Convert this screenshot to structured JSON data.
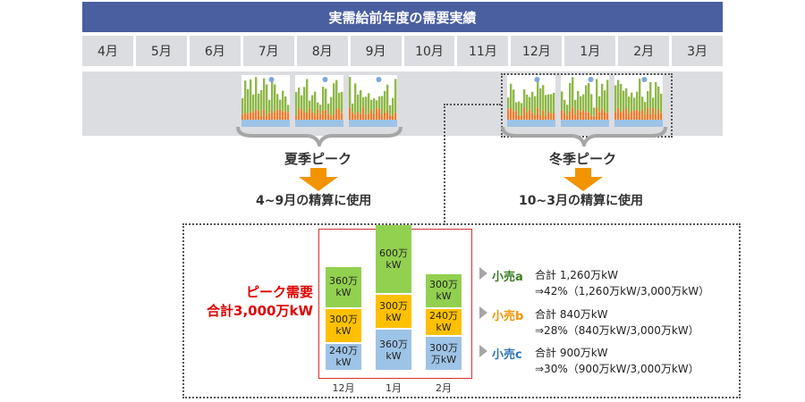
{
  "header": {
    "title": "実需給前年度の需要実績"
  },
  "months": [
    "4月",
    "5月",
    "6月",
    "7月",
    "8月",
    "9月",
    "10月",
    "11月",
    "12月",
    "1月",
    "2月",
    "3月"
  ],
  "summer": {
    "label": "夏季ピーク",
    "use": "4~9月の精算に使用"
  },
  "winter": {
    "label": "冬季ピーク",
    "use": "10~3月の精算に使用"
  },
  "peak_demand": {
    "line1": "ピーク需要",
    "line2": "合計3,000万kW"
  },
  "chart_data": {
    "type": "bar",
    "stacked": true,
    "categories": [
      "12月",
      "1月",
      "2月"
    ],
    "series": [
      {
        "name": "小売c",
        "color": "#9dc3e6",
        "values": [
          240,
          360,
          300
        ],
        "labels": [
          "240万kW",
          "360万kW",
          "300万万kW"
        ]
      },
      {
        "name": "小売b",
        "color": "#ffc000",
        "values": [
          300,
          300,
          240
        ],
        "labels": [
          "300万kW",
          "300万kW",
          "240万kW"
        ]
      },
      {
        "name": "小売a",
        "color": "#92d050",
        "values": [
          360,
          600,
          300
        ],
        "labels": [
          "360万kW",
          "600万kW",
          "300万kW"
        ]
      }
    ]
  },
  "retailers": [
    {
      "name": "小売a",
      "color": "#3a7d22",
      "line1": "合計 1,260万kW",
      "line2": "⇒42%（1,260万kW/3,000万kW）"
    },
    {
      "name": "小売b",
      "color": "#f29400",
      "line1": "合計 840万kW",
      "line2": "⇒28%（840万kW/3,000万kW）"
    },
    {
      "name": "小売c",
      "color": "#2e75b6",
      "line1": "合計 900万kW",
      "line2": "⇒30%（900万kW/3,000万kW）"
    }
  ]
}
